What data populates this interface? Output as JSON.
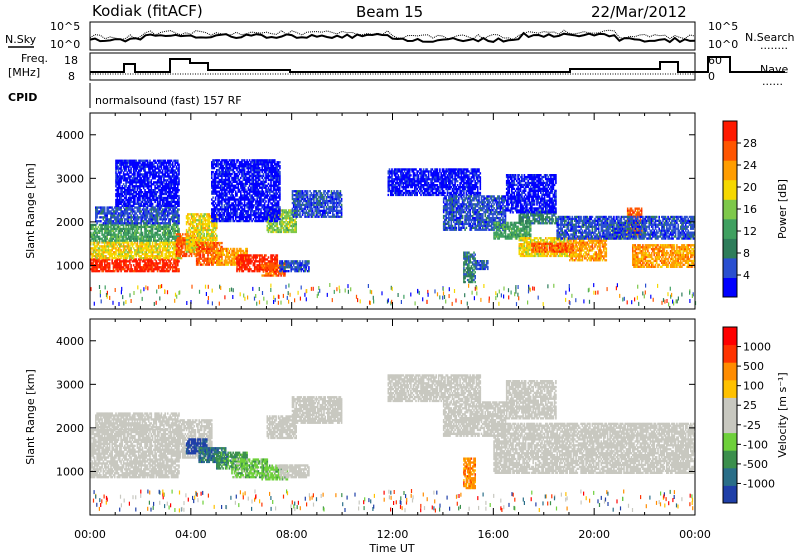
{
  "header": {
    "station": "Kodiak (fitACF)",
    "beam": "Beam 15",
    "date": "22/Mar/2012"
  },
  "strip_labels": {
    "nsky": "N.Sky",
    "nsearch": "N.Search",
    "nsearch_line": "........",
    "freq1": "Freq.",
    "freq2": "[MHz]",
    "nave": "Nave",
    "nave_line": "......",
    "cpid": "CPID",
    "program": "normalsound (fast) 157 RF",
    "noise_ticks": [
      "10^5",
      "10^0"
    ],
    "freq_ticks": [
      "18",
      "8"
    ],
    "nave_ticks": [
      "60",
      "0"
    ]
  },
  "colors": {
    "power_scale": [
      "#0000ff",
      "#2a4fd0",
      "#2e7d5a",
      "#3fa060",
      "#7ec84a",
      "#f5d800",
      "#ff9d00",
      "#ff5500",
      "#ff1a00"
    ],
    "velocity_scale": [
      "#1f3fa8",
      "#2a6e88",
      "#3b8f4c",
      "#6ed03a",
      "#c8c8c0",
      "#c8c8c0",
      "#ffc100",
      "#ff8c00",
      "#ff3300",
      "#ff0000"
    ]
  },
  "chart_data": [
    {
      "type": "heatmap",
      "name": "power",
      "xlabel": "Time UT",
      "ylabel": "Slant Range [km]",
      "x_range_hours": [
        0,
        24
      ],
      "ylim": [
        0,
        4500
      ],
      "yticks": [
        "4000",
        "3000",
        "2000",
        "1000"
      ],
      "colorbar": {
        "label": "Power [dB]",
        "ticks": [
          "28",
          "24",
          "20",
          "16",
          "12",
          "8",
          "4"
        ]
      },
      "features": [
        {
          "t0": 0.0,
          "t1": 3.5,
          "r0": 850,
          "r1": 1150,
          "level": 8
        },
        {
          "t0": 0.0,
          "t1": 3.6,
          "r0": 1150,
          "r1": 1550,
          "level": 5
        },
        {
          "t0": 0.0,
          "t1": 3.5,
          "r0": 1550,
          "r1": 1950,
          "level": 3
        },
        {
          "t0": 0.2,
          "t1": 3.5,
          "r0": 1950,
          "r1": 2350,
          "level": 1
        },
        {
          "t0": 1.0,
          "t1": 3.5,
          "r0": 2350,
          "r1": 3400,
          "level": 0
        },
        {
          "t0": 3.4,
          "t1": 4.3,
          "r0": 1200,
          "r1": 1700,
          "level": 7
        },
        {
          "t0": 3.8,
          "t1": 5.0,
          "r0": 1300,
          "r1": 2200,
          "level": 5
        },
        {
          "t0": 4.2,
          "t1": 5.2,
          "r0": 1000,
          "r1": 1500,
          "level": 7
        },
        {
          "t0": 5.0,
          "t1": 6.2,
          "r0": 1000,
          "r1": 1400,
          "level": 6
        },
        {
          "t0": 5.8,
          "t1": 7.4,
          "r0": 850,
          "r1": 1250,
          "level": 8
        },
        {
          "t0": 6.8,
          "t1": 7.7,
          "r0": 750,
          "r1": 1050,
          "level": 7
        },
        {
          "t0": 7.5,
          "t1": 8.7,
          "r0": 850,
          "r1": 1100,
          "level": 1
        },
        {
          "t0": 7.0,
          "t1": 8.2,
          "r0": 1750,
          "r1": 2250,
          "level": 4
        },
        {
          "t0": 8.0,
          "t1": 10.0,
          "r0": 2100,
          "r1": 2700,
          "level": 1
        },
        {
          "t0": 4.8,
          "t1": 7.5,
          "r0": 2000,
          "r1": 3400,
          "level": 0
        },
        {
          "t0": 11.8,
          "t1": 15.5,
          "r0": 2600,
          "r1": 3200,
          "level": 0
        },
        {
          "t0": 14.0,
          "t1": 16.5,
          "r0": 1800,
          "r1": 2600,
          "level": 1
        },
        {
          "t0": 14.8,
          "t1": 15.3,
          "r0": 600,
          "r1": 1300,
          "level": 2
        },
        {
          "t0": 15.3,
          "t1": 15.8,
          "r0": 900,
          "r1": 1100,
          "level": 1
        },
        {
          "t0": 16.0,
          "t1": 17.5,
          "r0": 1600,
          "r1": 2000,
          "level": 3
        },
        {
          "t0": 17.0,
          "t1": 19.0,
          "r0": 1200,
          "r1": 1650,
          "level": 5
        },
        {
          "t0": 17.5,
          "t1": 19.2,
          "r0": 1300,
          "r1": 1500,
          "level": 7
        },
        {
          "t0": 17.0,
          "t1": 18.5,
          "r0": 1950,
          "r1": 2250,
          "level": 2
        },
        {
          "t0": 19.0,
          "t1": 20.5,
          "r0": 1100,
          "r1": 1600,
          "level": 6
        },
        {
          "t0": 20.5,
          "t1": 22.0,
          "r0": 1600,
          "r1": 2000,
          "level": 4
        },
        {
          "t0": 21.5,
          "t1": 24.0,
          "r0": 950,
          "r1": 1450,
          "level": 6
        },
        {
          "t0": 21.3,
          "t1": 21.9,
          "r0": 1700,
          "r1": 2300,
          "level": 7
        },
        {
          "t0": 18.5,
          "t1": 24.0,
          "r0": 1600,
          "r1": 2100,
          "level": 1
        },
        {
          "t0": 16.5,
          "t1": 18.5,
          "r0": 2200,
          "r1": 3100,
          "level": 0
        }
      ]
    },
    {
      "type": "heatmap",
      "name": "velocity",
      "xlabel": "Time UT",
      "ylabel": "Slant Range [km]",
      "x_range_hours": [
        0,
        24
      ],
      "ylim": [
        0,
        4500
      ],
      "yticks": [
        "4000",
        "3000",
        "2000",
        "1000"
      ],
      "xticks": [
        "00:00",
        "04:00",
        "08:00",
        "12:00",
        "16:00",
        "20:00",
        "00:00"
      ],
      "colorbar": {
        "label": "Velocity [m s⁻¹]",
        "ticks": [
          "1000",
          "500",
          "100",
          "25",
          "-25",
          "-100",
          "-500",
          "-1000"
        ]
      },
      "features": [
        {
          "t0": 0.0,
          "t1": 3.5,
          "r0": 850,
          "r1": 1950,
          "level": 4
        },
        {
          "t0": 0.2,
          "t1": 3.5,
          "r0": 1950,
          "r1": 2350,
          "level": 4
        },
        {
          "t0": 3.4,
          "t1": 4.8,
          "r0": 1300,
          "r1": 2200,
          "level": 4
        },
        {
          "t0": 3.8,
          "t1": 4.6,
          "r0": 1400,
          "r1": 1750,
          "level": 0
        },
        {
          "t0": 4.3,
          "t1": 5.4,
          "r0": 1200,
          "r1": 1550,
          "level": 1
        },
        {
          "t0": 5.0,
          "t1": 6.2,
          "r0": 1050,
          "r1": 1450,
          "level": 2
        },
        {
          "t0": 5.6,
          "t1": 7.0,
          "r0": 850,
          "r1": 1300,
          "level": 3
        },
        {
          "t0": 6.8,
          "t1": 7.8,
          "r0": 800,
          "r1": 1150,
          "level": 3
        },
        {
          "t0": 7.5,
          "t1": 8.7,
          "r0": 850,
          "r1": 1150,
          "level": 4
        },
        {
          "t0": 7.0,
          "t1": 8.2,
          "r0": 1750,
          "r1": 2250,
          "level": 4
        },
        {
          "t0": 8.0,
          "t1": 10.0,
          "r0": 2100,
          "r1": 2700,
          "level": 4
        },
        {
          "t0": 11.8,
          "t1": 15.5,
          "r0": 2600,
          "r1": 3200,
          "level": 4
        },
        {
          "t0": 14.0,
          "t1": 16.5,
          "r0": 1800,
          "r1": 2600,
          "level": 4
        },
        {
          "t0": 14.8,
          "t1": 15.3,
          "r0": 600,
          "r1": 1300,
          "level": 7
        },
        {
          "t0": 16.0,
          "t1": 24.0,
          "r0": 950,
          "r1": 2100,
          "level": 4
        },
        {
          "t0": 16.5,
          "t1": 18.5,
          "r0": 2200,
          "r1": 3100,
          "level": 4
        }
      ]
    }
  ]
}
